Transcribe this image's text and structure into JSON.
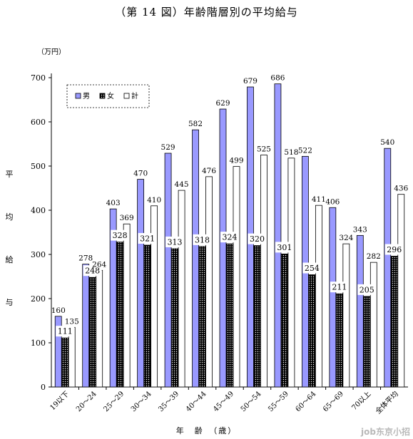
{
  "page": {
    "title": "（第 14 図）年齢階層別の平均給与",
    "unit": "（万円）",
    "ylabel_chars": [
      "平",
      "均",
      "給",
      "与"
    ],
    "xlabel": "年　齢　（歳）",
    "watermark": "job东京小招"
  },
  "chart_data": {
    "type": "bar",
    "title": "（第 14 図）年齢階層別の平均給与",
    "ylabel": "平均給与（万円）",
    "xlabel": "年齢（歳）",
    "ylim": [
      0,
      700
    ],
    "yticks": [
      0,
      100,
      200,
      300,
      400,
      500,
      600,
      700
    ],
    "grid": false,
    "legend": "top-left",
    "categories": [
      "19以下",
      "20～24",
      "25～29",
      "30～34",
      "35～39",
      "40～44",
      "45～49",
      "50～54",
      "55～59",
      "60～64",
      "65～69",
      "70以上",
      "全体平均"
    ],
    "series": [
      {
        "name": "男",
        "color": "#9999ff",
        "pattern": "solid",
        "values": [
          160,
          278,
          403,
          470,
          529,
          582,
          629,
          679,
          686,
          522,
          406,
          343,
          540
        ]
      },
      {
        "name": "女",
        "color": "#000000",
        "pattern": "dots",
        "values": [
          111,
          248,
          328,
          321,
          313,
          318,
          324,
          320,
          301,
          254,
          211,
          205,
          296
        ]
      },
      {
        "name": "計",
        "color": "#ffffff",
        "pattern": "hollow",
        "values": [
          135,
          264,
          369,
          410,
          445,
          476,
          499,
          525,
          518,
          411,
          324,
          282,
          436
        ]
      }
    ]
  }
}
